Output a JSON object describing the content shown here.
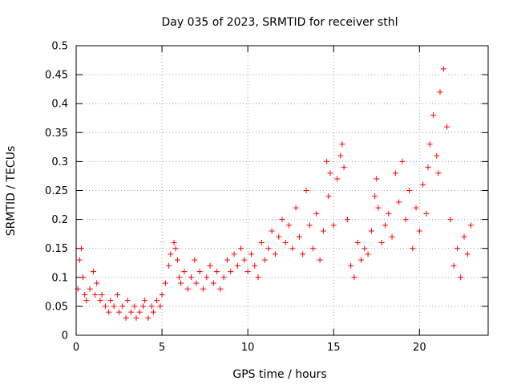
{
  "chart_data": {
    "type": "scatter",
    "title": "Day 035 of 2023, SRMTID for receiver sthl",
    "xlabel": "GPS time / hours",
    "ylabel": "SRMTID / TECUs",
    "xlim": [
      0,
      24
    ],
    "ylim": [
      0,
      0.5
    ],
    "xticks": [
      0,
      5,
      10,
      15,
      20
    ],
    "xtick_labels": [
      "0",
      "5",
      "10",
      "15",
      "20"
    ],
    "yticks": [
      0,
      0.05,
      0.1,
      0.15,
      0.2,
      0.25,
      0.3,
      0.35,
      0.4,
      0.45,
      0.5
    ],
    "ytick_labels": [
      "0",
      "0.05",
      "0.1",
      "0.15",
      "0.2",
      "0.25",
      "0.3",
      "0.35",
      "0.4",
      "0.45",
      "0.5"
    ],
    "grid": true,
    "legend": "none",
    "marker": "plus",
    "color": "#ff0000",
    "series": [
      {
        "x": [
          0.1,
          0.2,
          0.3,
          0.4,
          0.5,
          0.6,
          0.8,
          1.0,
          1.1,
          1.2,
          1.4,
          1.5,
          1.7,
          1.9,
          2.0,
          2.2,
          2.4,
          2.5,
          2.7,
          2.9,
          3.0,
          3.2,
          3.4,
          3.5,
          3.7,
          3.9,
          4.0,
          4.2,
          4.4,
          4.5,
          4.7,
          4.9,
          5.0,
          5.2,
          5.4,
          5.5,
          5.7,
          5.8,
          5.9,
          6.0,
          6.1,
          6.3,
          6.5,
          6.7,
          6.9,
          7.0,
          7.2,
          7.4,
          7.6,
          7.8,
          8.0,
          8.2,
          8.4,
          8.6,
          8.8,
          9.0,
          9.2,
          9.4,
          9.6,
          9.8,
          10.0,
          10.2,
          10.4,
          10.6,
          10.8,
          11.0,
          11.2,
          11.4,
          11.6,
          11.8,
          12.0,
          12.2,
          12.4,
          12.6,
          12.8,
          13.0,
          13.2,
          13.4,
          13.6,
          13.8,
          14.0,
          14.2,
          14.4,
          14.6,
          14.7,
          14.8,
          15.0,
          15.2,
          15.4,
          15.5,
          15.6,
          15.8,
          16.0,
          16.2,
          16.4,
          16.6,
          16.8,
          17.0,
          17.2,
          17.4,
          17.5,
          17.6,
          17.8,
          18.0,
          18.2,
          18.4,
          18.6,
          18.8,
          19.0,
          19.2,
          19.4,
          19.6,
          19.8,
          20.0,
          20.2,
          20.4,
          20.5,
          20.6,
          20.8,
          21.0,
          21.1,
          21.2,
          21.4,
          21.6,
          21.8,
          22.0,
          22.2,
          22.4,
          22.6,
          22.8,
          23.0
        ],
        "y": [
          0.08,
          0.13,
          0.15,
          0.1,
          0.07,
          0.06,
          0.08,
          0.11,
          0.07,
          0.09,
          0.06,
          0.07,
          0.05,
          0.04,
          0.06,
          0.05,
          0.07,
          0.04,
          0.05,
          0.03,
          0.06,
          0.04,
          0.05,
          0.03,
          0.04,
          0.05,
          0.06,
          0.03,
          0.05,
          0.04,
          0.06,
          0.05,
          0.07,
          0.09,
          0.12,
          0.14,
          0.16,
          0.15,
          0.13,
          0.1,
          0.09,
          0.11,
          0.08,
          0.1,
          0.13,
          0.09,
          0.11,
          0.08,
          0.1,
          0.12,
          0.09,
          0.11,
          0.08,
          0.1,
          0.13,
          0.11,
          0.14,
          0.12,
          0.15,
          0.13,
          0.11,
          0.14,
          0.12,
          0.1,
          0.16,
          0.13,
          0.15,
          0.18,
          0.14,
          0.17,
          0.2,
          0.16,
          0.19,
          0.15,
          0.22,
          0.17,
          0.14,
          0.25,
          0.19,
          0.15,
          0.21,
          0.13,
          0.18,
          0.3,
          0.24,
          0.28,
          0.19,
          0.27,
          0.31,
          0.33,
          0.29,
          0.2,
          0.12,
          0.1,
          0.16,
          0.13,
          0.15,
          0.14,
          0.18,
          0.24,
          0.27,
          0.22,
          0.16,
          0.19,
          0.21,
          0.17,
          0.28,
          0.23,
          0.3,
          0.2,
          0.25,
          0.15,
          0.22,
          0.18,
          0.26,
          0.21,
          0.29,
          0.33,
          0.38,
          0.31,
          0.28,
          0.42,
          0.46,
          0.36,
          0.2,
          0.12,
          0.15,
          0.1,
          0.17,
          0.14,
          0.19
        ]
      }
    ]
  }
}
